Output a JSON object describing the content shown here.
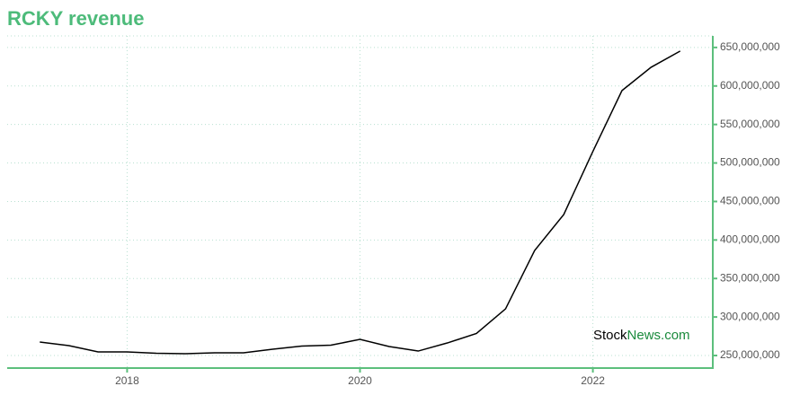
{
  "chart_data": {
    "type": "line",
    "title": "RCKY revenue",
    "watermark": [
      "Stock",
      "News.com"
    ],
    "x": [
      2017.25,
      2017.5,
      2017.75,
      2018,
      2018.25,
      2018.5,
      2018.75,
      2019,
      2019.25,
      2019.5,
      2019.75,
      2020,
      2020.25,
      2020.5,
      2020.75,
      2021,
      2021.25,
      2021.5,
      2021.75,
      2022,
      2022.25,
      2022.5,
      2022.75
    ],
    "series": [
      {
        "name": "revenue",
        "color": "#000000",
        "values": [
          267500000,
          262800000,
          254700000,
          254700000,
          252900000,
          252300000,
          253500000,
          253500000,
          258200000,
          262200000,
          263400000,
          271000000,
          261700000,
          255800000,
          266300000,
          278600000,
          310600000,
          386400000,
          433100000,
          515000000,
          594000000,
          624300000,
          645300000
        ]
      }
    ],
    "xlim": [
      2016.97,
      2023.03
    ],
    "xticks": [
      2018,
      2020,
      2022
    ],
    "ylim": [
      233700000,
      665000000
    ],
    "yticks": [
      {
        "value": 250000000,
        "label": "250,000,000"
      },
      {
        "value": 300000000,
        "label": "300,000,000"
      },
      {
        "value": 350000000,
        "label": "350,000,000"
      },
      {
        "value": 400000000,
        "label": "400,000,000"
      },
      {
        "value": 450000000,
        "label": "450,000,000"
      },
      {
        "value": 500000000,
        "label": "500,000,000"
      },
      {
        "value": 550000000,
        "label": "550,000,000"
      },
      {
        "value": 600000000,
        "label": "600,000,000"
      },
      {
        "value": 650000000,
        "label": "650,000,000"
      }
    ],
    "grid": true,
    "y_axis_side": "right"
  }
}
